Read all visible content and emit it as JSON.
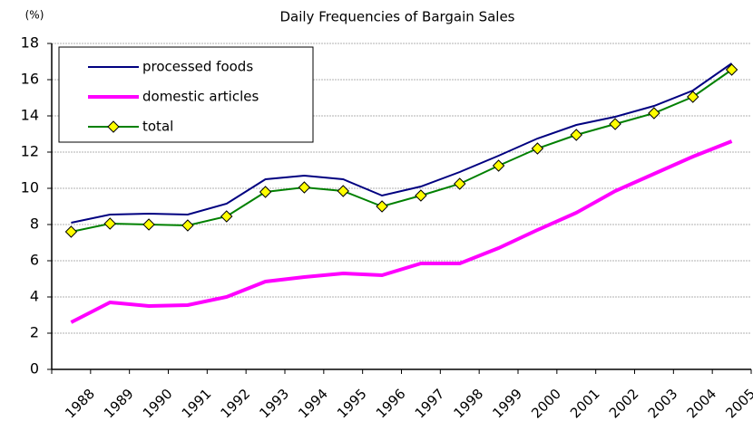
{
  "chart_data": {
    "type": "line",
    "title": "Daily Frequencies of Bargain Sales",
    "ylabel": "(%)",
    "categories": [
      "1988",
      "1989",
      "1990",
      "1991",
      "1992",
      "1993",
      "1994",
      "1995",
      "1996",
      "1997",
      "1998",
      "1999",
      "2000",
      "2001",
      "2002",
      "2003",
      "2004",
      "2005"
    ],
    "series": [
      {
        "name": "processed foods",
        "color": "#000080",
        "values": [
          8.1,
          8.55,
          8.6,
          8.55,
          9.15,
          10.5,
          10.7,
          10.5,
          9.6,
          10.1,
          10.9,
          11.8,
          12.75,
          13.5,
          13.95,
          14.55,
          15.4,
          16.9
        ]
      },
      {
        "name": "domestic articles",
        "color": "#ff00ff",
        "values": [
          2.6,
          3.7,
          3.5,
          3.55,
          4.0,
          4.85,
          5.1,
          5.3,
          5.2,
          5.85,
          5.85,
          6.7,
          7.7,
          8.65,
          9.85,
          10.8,
          11.75,
          12.6
        ]
      },
      {
        "name": "total",
        "color": "#008000",
        "marker": "diamond",
        "marker_color": "#ffff00",
        "values": [
          7.6,
          8.05,
          8.0,
          7.95,
          8.45,
          9.8,
          10.05,
          9.85,
          9.0,
          9.6,
          10.25,
          11.25,
          12.2,
          12.95,
          13.55,
          14.15,
          15.05,
          16.55
        ]
      }
    ],
    "ylim": [
      0,
      18
    ],
    "yticks": [
      0,
      2,
      4,
      6,
      8,
      10,
      12,
      14,
      16,
      18
    ],
    "grid": true,
    "legend": "upper left"
  }
}
